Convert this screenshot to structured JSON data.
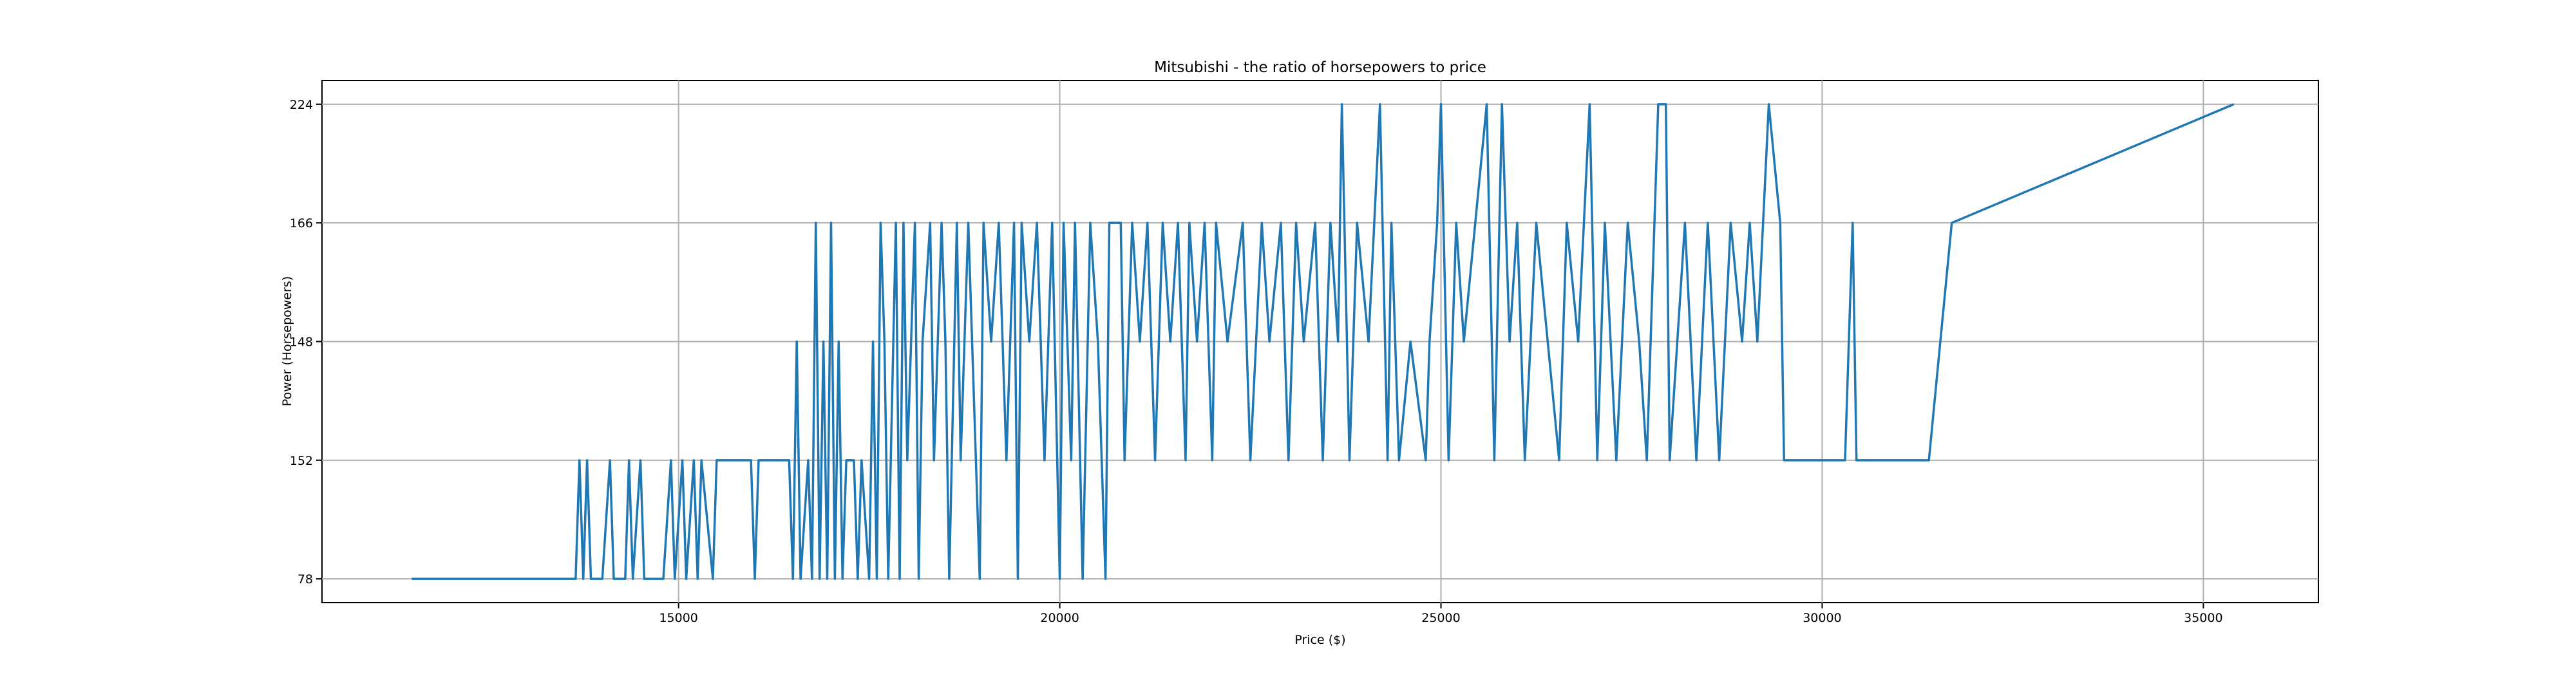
{
  "chart_data": {
    "type": "line",
    "title": "Mitsubishi - the ratio of horsepowers to price",
    "x_label": "Price ($)",
    "y_label": "Power (Horsepowers)",
    "color": "#1f77b4",
    "grid": true,
    "xlim": [
      10323,
      36509
    ],
    "xticks": [
      15000,
      20000,
      25000,
      30000,
      35000
    ],
    "ylim": [
      -0.2,
      4.2
    ],
    "yticks": [
      {
        "value": 0,
        "label": "78"
      },
      {
        "value": 1,
        "label": "152"
      },
      {
        "value": 2,
        "label": "148"
      },
      {
        "value": 3,
        "label": "166"
      },
      {
        "value": 4,
        "label": "224"
      }
    ],
    "x": [
      11500,
      13650,
      13700,
      13750,
      13800,
      13850,
      14000,
      14100,
      14150,
      14300,
      14350,
      14400,
      14500,
      14550,
      14600,
      14800,
      14900,
      14950,
      15050,
      15100,
      15200,
      15250,
      15300,
      15450,
      15500,
      15950,
      16000,
      16050,
      16450,
      16500,
      16550,
      16600,
      16700,
      16750,
      16800,
      16850,
      16900,
      16950,
      17000,
      17050,
      17100,
      17150,
      17200,
      17300,
      17350,
      17400,
      17500,
      17550,
      17600,
      17650,
      17700,
      17750,
      17850,
      17900,
      17950,
      18000,
      18100,
      18150,
      18200,
      18300,
      18350,
      18450,
      18500,
      18550,
      18650,
      18700,
      18800,
      18850,
      18950,
      19000,
      19100,
      19200,
      19300,
      19400,
      19450,
      19500,
      19600,
      19700,
      19800,
      19900,
      20000,
      20050,
      20150,
      20200,
      20300,
      20400,
      20500,
      20600,
      20650,
      20800,
      20850,
      20950,
      21050,
      21150,
      21250,
      21350,
      21450,
      21550,
      21650,
      21700,
      21800,
      21900,
      22000,
      22050,
      22200,
      22400,
      22500,
      22650,
      22750,
      22900,
      23000,
      23100,
      23200,
      23350,
      23450,
      23550,
      23650,
      23700,
      23800,
      23900,
      24050,
      24200,
      24300,
      24350,
      24450,
      24600,
      24800,
      24850,
      24950,
      25000,
      25100,
      25200,
      25300,
      25450,
      25600,
      25700,
      25800,
      25900,
      26000,
      26100,
      26250,
      26400,
      26550,
      26650,
      26800,
      26950,
      27050,
      27150,
      27300,
      27450,
      27600,
      27700,
      27850,
      27950,
      28000,
      28100,
      28200,
      28350,
      28500,
      28650,
      28800,
      28950,
      29050,
      29150,
      29300,
      29450,
      29500,
      30300,
      30400,
      30450,
      31400,
      31700,
      35400
    ],
    "values": [
      0,
      0,
      1,
      0,
      1,
      0,
      0,
      1,
      0,
      0,
      1,
      0,
      1,
      0,
      0,
      0,
      1,
      0,
      1,
      0,
      1,
      0,
      1,
      0,
      1,
      1,
      0,
      1,
      1,
      0,
      2,
      0,
      1,
      0,
      3,
      0,
      2,
      0,
      3,
      0,
      2,
      0,
      1,
      1,
      0,
      1,
      0,
      2,
      0,
      3,
      2,
      0,
      3,
      0,
      3,
      1,
      3,
      0,
      2,
      3,
      1,
      3,
      2,
      0,
      3,
      1,
      3,
      2,
      0,
      3,
      2,
      3,
      1,
      3,
      0,
      3,
      2,
      3,
      1,
      3,
      0,
      3,
      1,
      3,
      0,
      3,
      2,
      0,
      3,
      3,
      1,
      3,
      2,
      3,
      1,
      3,
      2,
      3,
      1,
      3,
      2,
      3,
      1,
      3,
      2,
      3,
      1,
      3,
      2,
      3,
      1,
      3,
      2,
      3,
      1,
      3,
      2,
      4,
      1,
      3,
      2,
      4,
      1,
      3,
      1,
      2,
      1,
      2,
      3,
      4,
      1,
      3,
      2,
      3,
      4,
      1,
      4,
      2,
      3,
      1,
      3,
      2,
      1,
      3,
      2,
      4,
      1,
      3,
      1,
      3,
      2,
      1,
      4,
      4,
      1,
      2,
      3,
      1,
      3,
      1,
      3,
      2,
      3,
      2,
      4,
      3,
      1,
      1,
      3,
      1,
      1,
      3,
      4
    ]
  }
}
